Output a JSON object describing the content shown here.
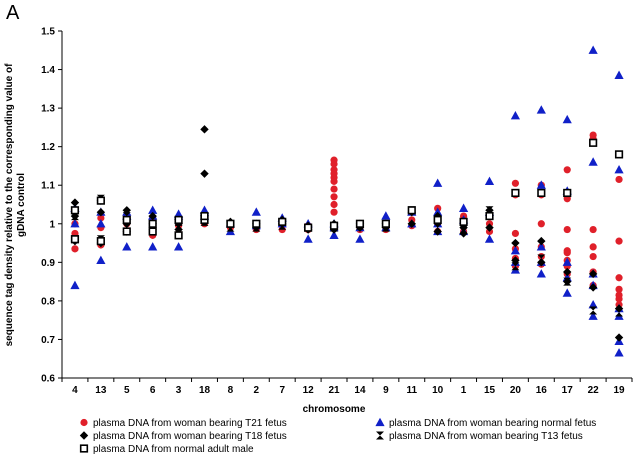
{
  "panel_label": "A",
  "chart_data": {
    "type": "scatter",
    "title": "",
    "xlabel": "chromosome",
    "ylabel_lines": [
      "sequence tag density relative to the corresponding value of",
      "gDNA control"
    ],
    "ylim": [
      0.6,
      1.5
    ],
    "yticks": [
      "0.6",
      "0.7",
      "0.8",
      "0.9",
      "1",
      "1.1",
      "1.2",
      "1.3",
      "1.4",
      "1.5"
    ],
    "categories": [
      "4",
      "13",
      "5",
      "6",
      "3",
      "18",
      "8",
      "2",
      "7",
      "12",
      "21",
      "14",
      "9",
      "11",
      "10",
      "1",
      "15",
      "20",
      "16",
      "17",
      "22",
      "19"
    ],
    "legend_position": "bottom",
    "series": [
      {
        "name": "plasma DNA from woman bearing T21 fetus",
        "marker": "circle",
        "color": "#e0202a",
        "points": [
          [
            0,
            0.935
          ],
          [
            0,
            0.975
          ],
          [
            0,
            1.0
          ],
          [
            1,
            0.945
          ],
          [
            1,
            0.99
          ],
          [
            1,
            1.015
          ],
          [
            2,
            0.98
          ],
          [
            2,
            1.0
          ],
          [
            2,
            1.02
          ],
          [
            3,
            0.97
          ],
          [
            3,
            1.0
          ],
          [
            3,
            1.015
          ],
          [
            4,
            0.975
          ],
          [
            4,
            0.995
          ],
          [
            4,
            1.01
          ],
          [
            5,
            1.0
          ],
          [
            5,
            1.01
          ],
          [
            6,
            0.99
          ],
          [
            6,
            1.0
          ],
          [
            7,
            0.985
          ],
          [
            7,
            1.0
          ],
          [
            8,
            0.985
          ],
          [
            8,
            1.0
          ],
          [
            9,
            0.985
          ],
          [
            9,
            0.995
          ],
          [
            10,
            1.03
          ],
          [
            10,
            1.05
          ],
          [
            10,
            1.07
          ],
          [
            10,
            1.09
          ],
          [
            10,
            1.11
          ],
          [
            10,
            1.12
          ],
          [
            10,
            1.13
          ],
          [
            10,
            1.14
          ],
          [
            10,
            1.155
          ],
          [
            10,
            1.165
          ],
          [
            11,
            0.985
          ],
          [
            11,
            0.995
          ],
          [
            12,
            0.985
          ],
          [
            12,
            1.0
          ],
          [
            13,
            0.995
          ],
          [
            13,
            1.01
          ],
          [
            14,
            0.98
          ],
          [
            14,
            1.0
          ],
          [
            14,
            1.04
          ],
          [
            15,
            0.98
          ],
          [
            15,
            1.0
          ],
          [
            15,
            1.02
          ],
          [
            16,
            0.98
          ],
          [
            16,
            1.0
          ],
          [
            16,
            1.02
          ],
          [
            17,
            0.89
          ],
          [
            17,
            0.91
          ],
          [
            17,
            0.935
          ],
          [
            17,
            0.975
          ],
          [
            17,
            1.075
          ],
          [
            17,
            1.105
          ],
          [
            18,
            0.895
          ],
          [
            18,
            0.915
          ],
          [
            18,
            0.94
          ],
          [
            18,
            1.0
          ],
          [
            18,
            1.075
          ],
          [
            18,
            1.1
          ],
          [
            19,
            0.87
          ],
          [
            19,
            0.89
          ],
          [
            19,
            0.905
          ],
          [
            19,
            0.925
          ],
          [
            19,
            0.93
          ],
          [
            19,
            0.985
          ],
          [
            19,
            1.065
          ],
          [
            19,
            1.14
          ],
          [
            20,
            0.84
          ],
          [
            20,
            0.875
          ],
          [
            20,
            0.915
          ],
          [
            20,
            0.94
          ],
          [
            20,
            0.985
          ],
          [
            20,
            1.22
          ],
          [
            20,
            1.23
          ],
          [
            21,
            0.79
          ],
          [
            21,
            0.805
          ],
          [
            21,
            0.815
          ],
          [
            21,
            0.83
          ],
          [
            21,
            0.86
          ],
          [
            21,
            0.955
          ],
          [
            21,
            1.115
          ]
        ]
      },
      {
        "name": "plasma DNA from woman bearing normal fetus",
        "marker": "triangle",
        "color": "#1020c8",
        "points": [
          [
            0,
            0.84
          ],
          [
            0,
            1.0
          ],
          [
            0,
            1.04
          ],
          [
            1,
            0.905
          ],
          [
            1,
            1.0
          ],
          [
            1,
            1.03
          ],
          [
            2,
            0.94
          ],
          [
            2,
            1.02
          ],
          [
            2,
            1.03
          ],
          [
            3,
            0.94
          ],
          [
            3,
            1.02
          ],
          [
            3,
            1.035
          ],
          [
            4,
            0.94
          ],
          [
            4,
            1.02
          ],
          [
            4,
            1.025
          ],
          [
            5,
            1.02
          ],
          [
            5,
            1.03
          ],
          [
            5,
            1.035
          ],
          [
            6,
            0.98
          ],
          [
            6,
            1.0
          ],
          [
            7,
            0.995
          ],
          [
            7,
            1.03
          ],
          [
            8,
            1.0
          ],
          [
            8,
            1.015
          ],
          [
            9,
            0.96
          ],
          [
            9,
            1.0
          ],
          [
            10,
            0.97
          ],
          [
            10,
            0.99
          ],
          [
            10,
            1.0
          ],
          [
            11,
            0.96
          ],
          [
            11,
            0.99
          ],
          [
            12,
            0.99
          ],
          [
            12,
            1.02
          ],
          [
            13,
            1.0
          ],
          [
            13,
            1.03
          ],
          [
            14,
            0.98
          ],
          [
            14,
            1.0
          ],
          [
            14,
            1.03
          ],
          [
            14,
            1.105
          ],
          [
            15,
            0.98
          ],
          [
            15,
            1.01
          ],
          [
            15,
            1.04
          ],
          [
            16,
            0.96
          ],
          [
            16,
            1.03
          ],
          [
            16,
            1.11
          ],
          [
            17,
            0.88
          ],
          [
            17,
            0.9
          ],
          [
            17,
            0.93
          ],
          [
            17,
            1.28
          ],
          [
            18,
            0.87
          ],
          [
            18,
            0.9
          ],
          [
            18,
            0.94
          ],
          [
            18,
            1.1
          ],
          [
            18,
            1.295
          ],
          [
            19,
            0.82
          ],
          [
            19,
            0.86
          ],
          [
            19,
            0.9
          ],
          [
            19,
            1.085
          ],
          [
            19,
            1.27
          ],
          [
            20,
            0.76
          ],
          [
            20,
            0.79
          ],
          [
            20,
            0.84
          ],
          [
            20,
            0.87
          ],
          [
            20,
            1.16
          ],
          [
            20,
            1.45
          ],
          [
            21,
            0.665
          ],
          [
            21,
            0.695
          ],
          [
            21,
            0.76
          ],
          [
            21,
            0.78
          ],
          [
            21,
            1.14
          ],
          [
            21,
            1.385
          ]
        ]
      },
      {
        "name": "plasma DNA from woman bearing T18 fetus",
        "marker": "diamond",
        "color": "#000000",
        "points": [
          [
            0,
            0.955
          ],
          [
            0,
            1.02
          ],
          [
            0,
            1.055
          ],
          [
            1,
            0.95
          ],
          [
            1,
            1.03
          ],
          [
            1,
            1.06
          ],
          [
            2,
            0.98
          ],
          [
            2,
            1.0
          ],
          [
            2,
            1.035
          ],
          [
            3,
            0.985
          ],
          [
            3,
            1.0
          ],
          [
            3,
            1.02
          ],
          [
            4,
            0.985
          ],
          [
            4,
            1.0
          ],
          [
            5,
            1.02
          ],
          [
            5,
            1.13
          ],
          [
            5,
            1.245
          ],
          [
            6,
            0.995
          ],
          [
            6,
            1.005
          ],
          [
            7,
            0.99
          ],
          [
            7,
            1.0
          ],
          [
            8,
            1.0
          ],
          [
            8,
            1.01
          ],
          [
            9,
            0.985
          ],
          [
            9,
            0.995
          ],
          [
            10,
            0.985
          ],
          [
            10,
            1.0
          ],
          [
            11,
            0.99
          ],
          [
            11,
            1.0
          ],
          [
            12,
            0.99
          ],
          [
            12,
            1.0
          ],
          [
            13,
            1.0
          ],
          [
            13,
            1.03
          ],
          [
            14,
            0.98
          ],
          [
            14,
            1.02
          ],
          [
            15,
            0.975
          ],
          [
            15,
            0.99
          ],
          [
            16,
            0.99
          ],
          [
            16,
            1.035
          ],
          [
            17,
            0.905
          ],
          [
            17,
            0.95
          ],
          [
            18,
            0.955
          ],
          [
            18,
            0.9
          ],
          [
            19,
            0.875
          ],
          [
            19,
            0.85
          ],
          [
            20,
            0.835
          ],
          [
            20,
            0.87
          ],
          [
            21,
            0.705
          ],
          [
            21,
            0.78
          ]
        ]
      },
      {
        "name": "plasma DNA from woman bearing T13 fetus",
        "marker": "hourglass",
        "color": "#000000",
        "points": [
          [
            0,
            0.96
          ],
          [
            0,
            1.02
          ],
          [
            1,
            0.96
          ],
          [
            1,
            1.065
          ],
          [
            2,
            0.99
          ],
          [
            2,
            1.02
          ],
          [
            3,
            0.99
          ],
          [
            3,
            1.01
          ],
          [
            4,
            0.975
          ],
          [
            4,
            1.005
          ],
          [
            5,
            1.005
          ],
          [
            6,
            0.99
          ],
          [
            7,
            0.99
          ],
          [
            8,
            0.995
          ],
          [
            9,
            0.99
          ],
          [
            10,
            0.99
          ],
          [
            11,
            0.995
          ],
          [
            12,
            0.99
          ],
          [
            13,
            1.035
          ],
          [
            14,
            0.99
          ],
          [
            15,
            0.985
          ],
          [
            16,
            1.035
          ],
          [
            17,
            0.89
          ],
          [
            18,
            0.91
          ],
          [
            19,
            0.85
          ],
          [
            20,
            0.775
          ],
          [
            21,
            0.77
          ]
        ]
      },
      {
        "name": "plasma DNA from normal adult male",
        "marker": "open-square",
        "color": "#000000",
        "points": [
          [
            0,
            0.96
          ],
          [
            0,
            1.035
          ],
          [
            1,
            0.955
          ],
          [
            1,
            1.06
          ],
          [
            2,
            0.98
          ],
          [
            2,
            1.01
          ],
          [
            3,
            0.98
          ],
          [
            3,
            1.0
          ],
          [
            4,
            0.97
          ],
          [
            4,
            1.01
          ],
          [
            5,
            1.01
          ],
          [
            5,
            1.02
          ],
          [
            6,
            1.0
          ],
          [
            7,
            1.0
          ],
          [
            8,
            1.005
          ],
          [
            9,
            0.99
          ],
          [
            10,
            0.995
          ],
          [
            11,
            1.0
          ],
          [
            12,
            1.0
          ],
          [
            13,
            1.035
          ],
          [
            14,
            1.01
          ],
          [
            15,
            1.005
          ],
          [
            16,
            1.02
          ],
          [
            17,
            1.08
          ],
          [
            18,
            1.08
          ],
          [
            19,
            1.08
          ],
          [
            20,
            1.21
          ],
          [
            21,
            1.18
          ]
        ]
      }
    ]
  }
}
